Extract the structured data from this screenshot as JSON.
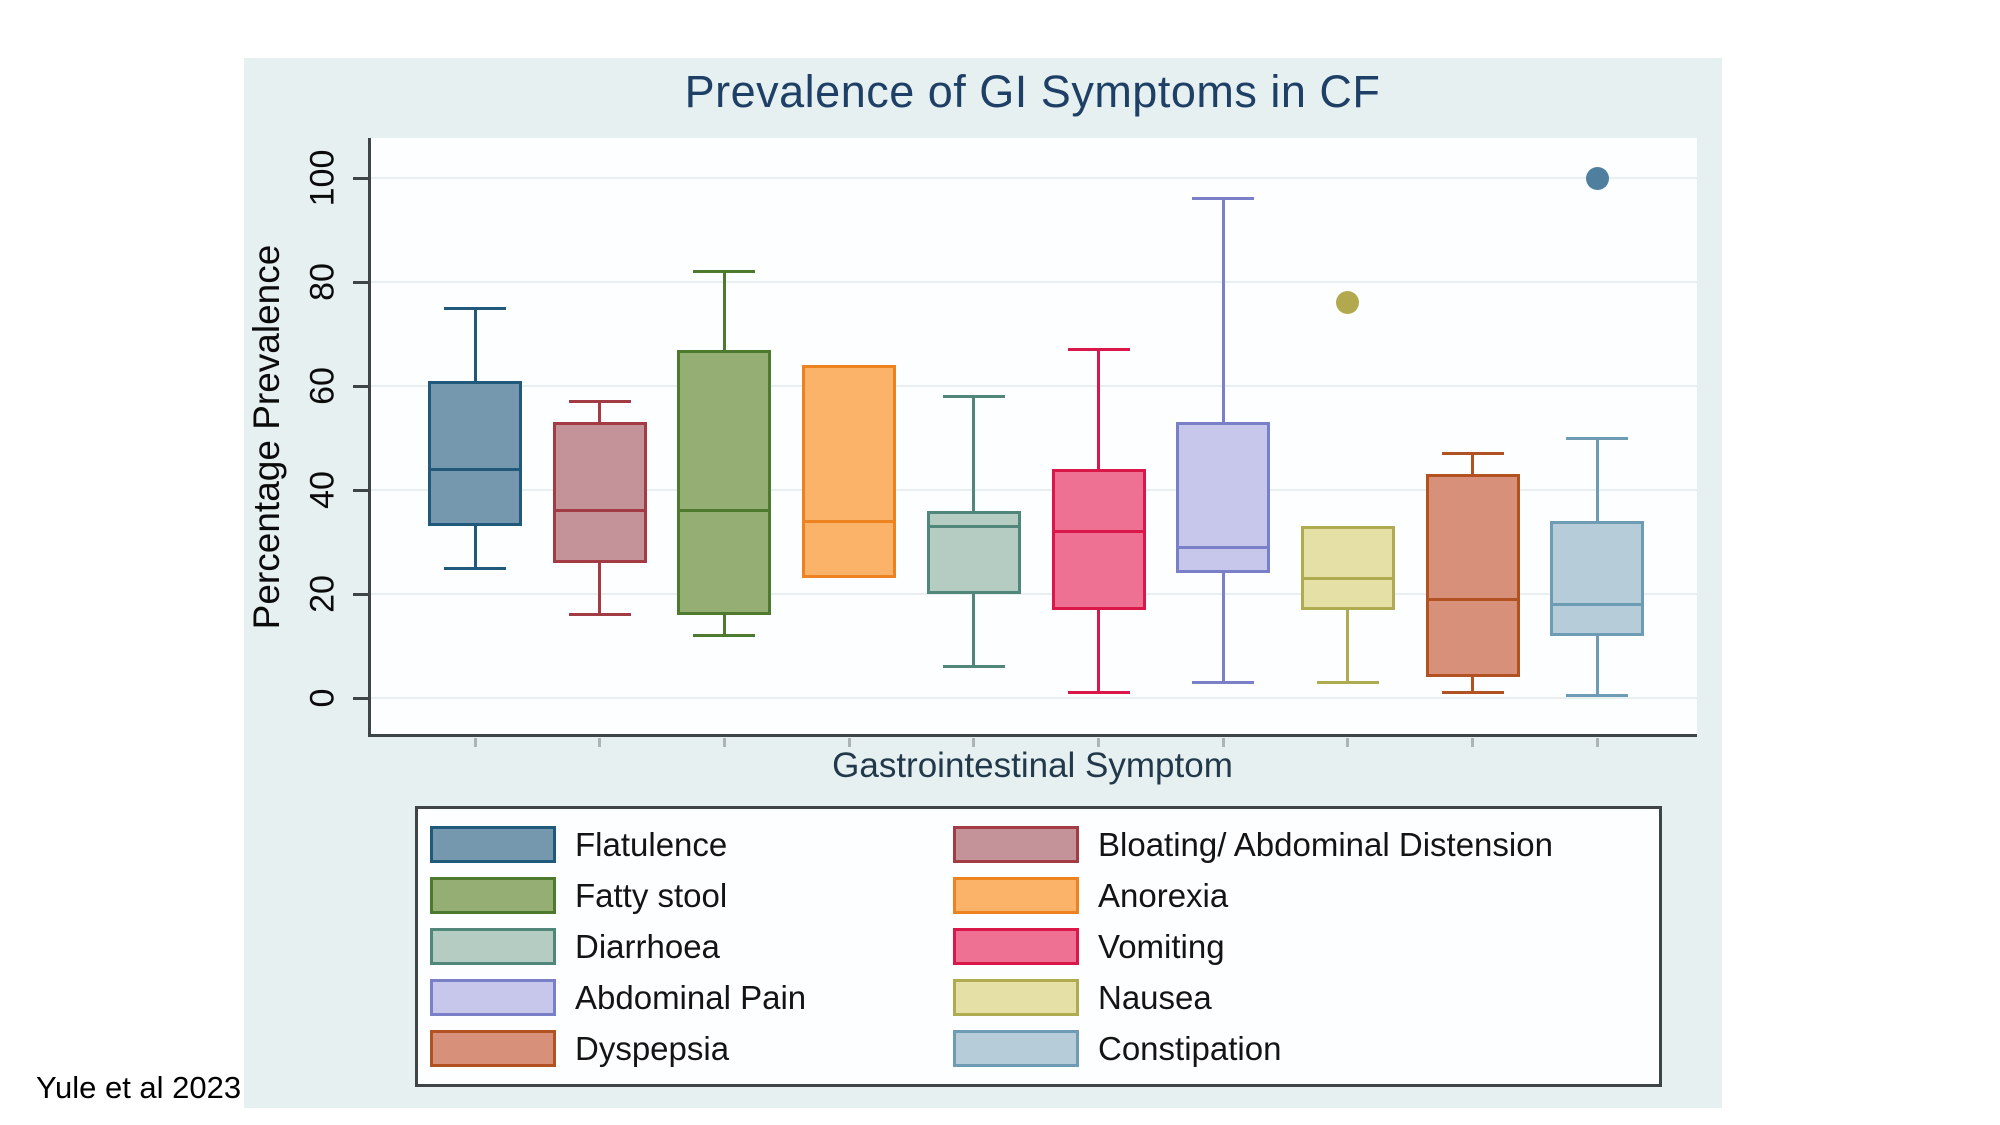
{
  "page": {
    "citation": "Yule et al 2023"
  },
  "chart_data": {
    "type": "boxplot",
    "title": "Prevalence of GI Symptoms in CF",
    "xlabel": "Gastrointestinal Symptom",
    "ylabel": "Percentage Prevalence",
    "ylim": [
      0,
      107
    ],
    "yticks": [
      0,
      20,
      40,
      60,
      80,
      100
    ],
    "grid": true,
    "legend_position": "bottom",
    "axis_color": "#3f4447",
    "grid_color": "#e8eff1",
    "title_color": "#1f4066",
    "panel_background": "#e7f0f1",
    "plot_background": "#fdfeff",
    "series": [
      {
        "name": "Flatulence",
        "fill": "#7598ae",
        "stroke": "#21597a",
        "whisker_low": 25,
        "q1": 33,
        "median": 44,
        "q3": 61,
        "whisker_high": 75,
        "outliers": []
      },
      {
        "name": "Bloating/ Abdominal Distension",
        "fill": "#c4939a",
        "stroke": "#a33b45",
        "whisker_low": 16,
        "q1": 26,
        "median": 36,
        "q3": 53,
        "whisker_high": 57,
        "outliers": []
      },
      {
        "name": "Fatty stool",
        "fill": "#95ae73",
        "stroke": "#4d7a2f",
        "whisker_low": 12,
        "q1": 16,
        "median": 36,
        "q3": 67,
        "whisker_high": 82,
        "outliers": []
      },
      {
        "name": "Anorexia",
        "fill": "#fbb369",
        "stroke": "#ec8220",
        "whisker_low": 23,
        "q1": 23,
        "median": 34,
        "q3": 64,
        "whisker_high": 64,
        "outliers": []
      },
      {
        "name": "Diarrhoea",
        "fill": "#b5ccc3",
        "stroke": "#50877a",
        "whisker_low": 6,
        "q1": 20,
        "median": 33,
        "q3": 36,
        "whisker_high": 58,
        "outliers": []
      },
      {
        "name": "Vomiting",
        "fill": "#ee7093",
        "stroke": "#d91748",
        "whisker_low": 1,
        "q1": 17,
        "median": 32,
        "q3": 44,
        "whisker_high": 67,
        "outliers": []
      },
      {
        "name": "Abdominal Pain",
        "fill": "#c6c7eb",
        "stroke": "#7a80c7",
        "whisker_low": 3,
        "q1": 24,
        "median": 29,
        "q3": 53,
        "whisker_high": 96,
        "outliers": []
      },
      {
        "name": "Nausea",
        "fill": "#e4e0a6",
        "stroke": "#afab51",
        "marker": "#b2a94e",
        "whisker_low": 3,
        "q1": 17,
        "median": 23,
        "q3": 33,
        "whisker_high": 33,
        "outliers": [
          76
        ]
      },
      {
        "name": "Dyspepsia",
        "fill": "#d7917a",
        "stroke": "#b25222",
        "whisker_low": 1,
        "q1": 4,
        "median": 19,
        "q3": 43,
        "whisker_high": 47,
        "outliers": []
      },
      {
        "name": "Constipation",
        "fill": "#b6ccd9",
        "stroke": "#6f9cb5",
        "marker": "#4e7f9e",
        "whisker_low": 0.5,
        "q1": 12,
        "median": 18,
        "q3": 34,
        "whisker_high": 50,
        "outliers": [
          100
        ]
      }
    ]
  }
}
